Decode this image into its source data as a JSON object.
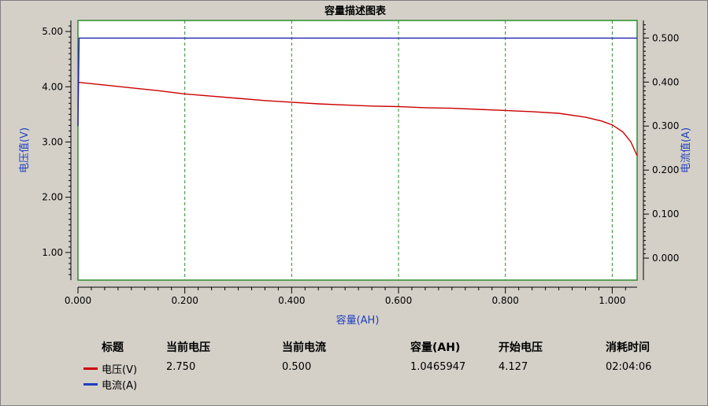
{
  "chart_data": {
    "type": "line",
    "title": "容量描述图表",
    "xlabel": "容量(AH)",
    "ylabel_left": "电压值(V)",
    "ylabel_right": "电流值(A)",
    "xlim": [
      0,
      1.0466
    ],
    "ylim_left": [
      0.5,
      5.2
    ],
    "ylim_right": [
      -0.05,
      0.54
    ],
    "x_ticks": [
      "0.000",
      "0.200",
      "0.400",
      "0.600",
      "0.800",
      "1.000"
    ],
    "x_tick_values": [
      0,
      0.2,
      0.4,
      0.6,
      0.8,
      1.0
    ],
    "y_left_ticks": [
      "1.00",
      "2.00",
      "3.00",
      "4.00",
      "5.00"
    ],
    "y_left_tick_values": [
      1,
      2,
      3,
      4,
      5
    ],
    "y_right_ticks": [
      "0.000",
      "0.100",
      "0.200",
      "0.300",
      "0.400",
      "0.500"
    ],
    "y_right_tick_values": [
      0,
      0.1,
      0.2,
      0.3,
      0.4,
      0.5
    ],
    "grid_x": true,
    "series": [
      {
        "name": "电压(V)",
        "axis": "left",
        "color": "#cc0000",
        "x": [
          0,
          0.05,
          0.1,
          0.15,
          0.2,
          0.25,
          0.3,
          0.35,
          0.4,
          0.45,
          0.5,
          0.55,
          0.6,
          0.65,
          0.7,
          0.75,
          0.8,
          0.85,
          0.9,
          0.95,
          0.98,
          1.0,
          1.02,
          1.035,
          1.0466
        ],
        "y": [
          4.08,
          4.03,
          3.98,
          3.93,
          3.87,
          3.83,
          3.79,
          3.75,
          3.72,
          3.69,
          3.67,
          3.65,
          3.64,
          3.62,
          3.61,
          3.59,
          3.57,
          3.55,
          3.52,
          3.45,
          3.38,
          3.31,
          3.18,
          3.0,
          2.75
        ]
      },
      {
        "name": "电流(A)",
        "axis": "right",
        "color": "#2020b0",
        "x": [
          0,
          0.002,
          0.004,
          1.0466
        ],
        "y": [
          0.3,
          0.5,
          0.5,
          0.5
        ]
      }
    ]
  },
  "legend": {
    "headers": {
      "title": "标题",
      "voltage": "当前电压",
      "current": "当前电流",
      "capacity": "容量(AH)",
      "start_voltage": "开始电压",
      "elapsed": "消耗时间"
    },
    "rows": [
      {
        "color": "#cc0000",
        "name": "电压(V)",
        "voltage": "2.750",
        "current": "0.500",
        "capacity": "1.0465947",
        "start_voltage": "4.127",
        "elapsed": "02:04:06"
      },
      {
        "color": "#1f3fbf",
        "name": "电流(A)"
      }
    ]
  }
}
